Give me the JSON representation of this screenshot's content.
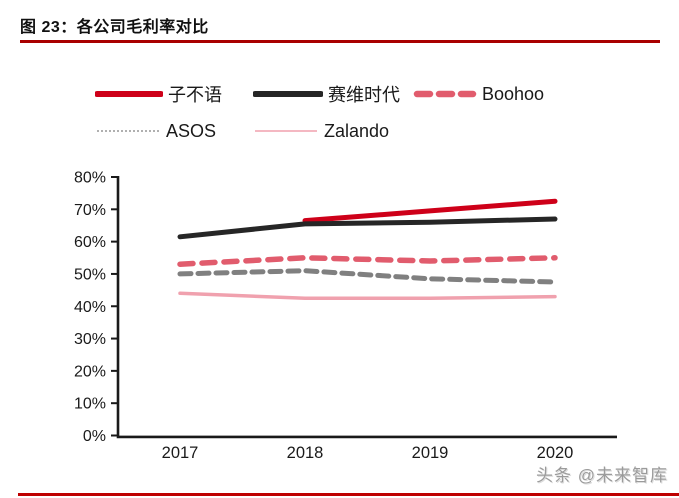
{
  "title": "图 23：各公司毛利率对比",
  "watermark": "头条 @未来智库",
  "colors": {
    "title_rule": "#A90000",
    "bottom_rule": "#BE0000",
    "axis": "#1A1A1A",
    "text": "#1A1A1A",
    "watermark": "#9B9B9B"
  },
  "chart_data": {
    "type": "line",
    "title": "图 23：各公司毛利率对比",
    "categories": [
      "2017",
      "2018",
      "2019",
      "2020"
    ],
    "xlabel": "",
    "ylabel": "",
    "ylim": [
      0,
      80
    ],
    "ytick_step": 10,
    "ytick_labels": [
      "0%",
      "10%",
      "20%",
      "30%",
      "40%",
      "50%",
      "60%",
      "70%",
      "80%"
    ],
    "grid": false,
    "legend_position": "top",
    "series": [
      {
        "name": "子不语",
        "color": "#CE0019",
        "style": "solid",
        "width": 5,
        "values": [
          null,
          66.5,
          69.5,
          72.5
        ]
      },
      {
        "name": "赛维时代",
        "color": "#262626",
        "style": "solid",
        "width": 5,
        "values": [
          61.5,
          65.5,
          66,
          67
        ]
      },
      {
        "name": "Boohoo",
        "color": "#E15C6D",
        "style": "dashed",
        "width": 5.5,
        "dash": [
          13,
          9
        ],
        "values": [
          53,
          55,
          54,
          55
        ]
      },
      {
        "name": "ASOS",
        "color": "#808080",
        "style": "dashed",
        "width": 5,
        "dash": [
          11,
          7
        ],
        "values": [
          50,
          51,
          48.5,
          47.5
        ]
      },
      {
        "name": "Zalando",
        "color": "#F0A1AE",
        "style": "solid",
        "width": 3.5,
        "values": [
          44,
          42.5,
          42.5,
          43
        ]
      }
    ]
  }
}
